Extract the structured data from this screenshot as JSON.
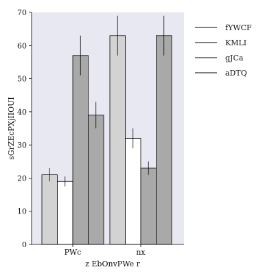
{
  "chart_data": {
    "type": "bar",
    "xlabel": "z EbOnvPWe r",
    "ylabel": "sGrZEcPXjIIOUI",
    "ylim": [
      0,
      70
    ],
    "yticks": [
      0,
      10,
      20,
      30,
      40,
      50,
      60,
      70
    ],
    "categories": [
      "PWc",
      "nx"
    ],
    "grid": false,
    "background": "#e8e8f2",
    "legend_position": "right",
    "series": [
      {
        "name": "fYWCF",
        "color": "#d3d3d3",
        "values": [
          21,
          63
        ],
        "errors": [
          2,
          6
        ]
      },
      {
        "name": "KMLI",
        "color": "#ffffff",
        "values": [
          19,
          32
        ],
        "errors": [
          1.5,
          3
        ]
      },
      {
        "name": "gJCa",
        "color": "#a9a9a9",
        "values": [
          57,
          23
        ],
        "errors": [
          6,
          2
        ]
      },
      {
        "name": "aDTQ",
        "color": "#a9a9a9",
        "values": [
          39,
          63
        ],
        "errors": [
          4,
          6
        ]
      }
    ]
  }
}
